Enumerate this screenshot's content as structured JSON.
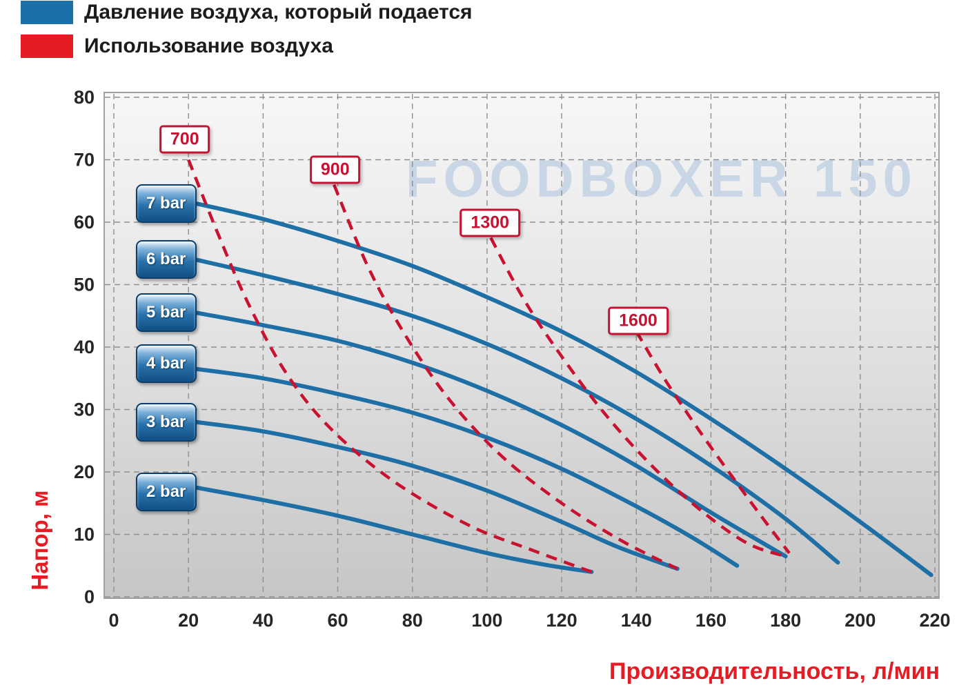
{
  "legend": {
    "items": [
      {
        "label": "Давление воздуха, который подается",
        "color": "#1c6fa8"
      },
      {
        "label": "Использование воздуха",
        "color": "#e41b23"
      }
    ]
  },
  "chart_data": {
    "type": "line",
    "title": "FOODBOXER 150",
    "xlabel": "Производительность, л/мин",
    "ylabel": "Напор, м",
    "xlim": [
      0,
      220
    ],
    "ylim": [
      0,
      80
    ],
    "xticks": [
      0,
      20,
      40,
      60,
      80,
      100,
      120,
      140,
      160,
      180,
      200,
      220
    ],
    "yticks": [
      0,
      10,
      20,
      30,
      40,
      50,
      60,
      70,
      80
    ],
    "grid": true,
    "legend_position": "top-left",
    "series": [
      {
        "name": "7 bar",
        "kind": "pressure",
        "color": "#1e6fa5",
        "style": "solid",
        "points": [
          [
            22,
            63
          ],
          [
            40,
            60.5
          ],
          [
            60,
            57
          ],
          [
            80,
            53
          ],
          [
            100,
            48
          ],
          [
            120,
            42.5
          ],
          [
            140,
            36
          ],
          [
            160,
            28.5
          ],
          [
            180,
            20.5
          ],
          [
            200,
            12
          ],
          [
            219,
            3.5
          ]
        ]
      },
      {
        "name": "6 bar",
        "kind": "pressure",
        "color": "#1e6fa5",
        "style": "solid",
        "points": [
          [
            22,
            54
          ],
          [
            40,
            51.5
          ],
          [
            60,
            48.5
          ],
          [
            80,
            45
          ],
          [
            100,
            40.5
          ],
          [
            120,
            35
          ],
          [
            140,
            28.5
          ],
          [
            160,
            21
          ],
          [
            180,
            12.5
          ],
          [
            194,
            5.5
          ]
        ]
      },
      {
        "name": "5 bar",
        "kind": "pressure",
        "color": "#1e6fa5",
        "style": "solid",
        "points": [
          [
            22,
            45.5
          ],
          [
            40,
            43.5
          ],
          [
            60,
            41
          ],
          [
            80,
            37.5
          ],
          [
            100,
            33
          ],
          [
            120,
            27.5
          ],
          [
            140,
            21
          ],
          [
            160,
            13.5
          ],
          [
            180,
            6.5
          ]
        ]
      },
      {
        "name": "4 bar",
        "kind": "pressure",
        "color": "#1e6fa5",
        "style": "solid",
        "points": [
          [
            22,
            36.5
          ],
          [
            40,
            35
          ],
          [
            60,
            32.5
          ],
          [
            80,
            29.5
          ],
          [
            100,
            25.5
          ],
          [
            120,
            20.5
          ],
          [
            140,
            14.5
          ],
          [
            155,
            9.5
          ],
          [
            167,
            5
          ]
        ]
      },
      {
        "name": "3 bar",
        "kind": "pressure",
        "color": "#1e6fa5",
        "style": "solid",
        "points": [
          [
            22,
            28
          ],
          [
            40,
            26.5
          ],
          [
            60,
            24
          ],
          [
            80,
            21
          ],
          [
            100,
            17
          ],
          [
            120,
            12
          ],
          [
            135,
            8
          ],
          [
            151,
            4.5
          ]
        ]
      },
      {
        "name": "2 bar",
        "kind": "pressure",
        "color": "#1e6fa5",
        "style": "solid",
        "points": [
          [
            22,
            17.5
          ],
          [
            40,
            15.5
          ],
          [
            60,
            13
          ],
          [
            80,
            10
          ],
          [
            100,
            7
          ],
          [
            115,
            5.2
          ],
          [
            128,
            4
          ]
        ]
      },
      {
        "name": "700",
        "kind": "air",
        "color": "#c8122f",
        "style": "dashed",
        "points": [
          [
            20,
            70
          ],
          [
            28,
            58
          ],
          [
            36,
            47
          ],
          [
            46,
            36
          ],
          [
            58,
            27
          ],
          [
            75,
            18.5
          ],
          [
            95,
            11.5
          ],
          [
            112,
            7.5
          ],
          [
            128,
            4
          ]
        ]
      },
      {
        "name": "900",
        "kind": "air",
        "color": "#c8122f",
        "style": "dashed",
        "points": [
          [
            59,
            66
          ],
          [
            68,
            53
          ],
          [
            78,
            42
          ],
          [
            90,
            31.5
          ],
          [
            104,
            22.5
          ],
          [
            120,
            15
          ],
          [
            136,
            9
          ],
          [
            151,
            4.5
          ]
        ]
      },
      {
        "name": "1300",
        "kind": "air",
        "color": "#c8122f",
        "style": "dashed",
        "points": [
          [
            101,
            57.5
          ],
          [
            110,
            47.5
          ],
          [
            120,
            38.5
          ],
          [
            132,
            29
          ],
          [
            145,
            20.5
          ],
          [
            158,
            13.5
          ],
          [
            170,
            8.5
          ],
          [
            180,
            6.5
          ]
        ]
      },
      {
        "name": "1600",
        "kind": "air",
        "color": "#c8122f",
        "style": "dashed",
        "points": [
          [
            140,
            42.5
          ],
          [
            148,
            34.5
          ],
          [
            157,
            26.5
          ],
          [
            166,
            19
          ],
          [
            174,
            12.5
          ],
          [
            181,
            7
          ]
        ]
      }
    ],
    "pressure_badges": [
      {
        "label": "7 bar",
        "x": 14,
        "y": 63
      },
      {
        "label": "6 bar",
        "x": 14,
        "y": 54
      },
      {
        "label": "5 bar",
        "x": 14,
        "y": 45.5
      },
      {
        "label": "4 bar",
        "x": 14,
        "y": 37.3
      },
      {
        "label": "3 bar",
        "x": 14,
        "y": 28
      },
      {
        "label": "2 bar",
        "x": 14,
        "y": 16.8
      }
    ],
    "air_badges": [
      {
        "label": "700",
        "x": 19,
        "y": 73.3
      },
      {
        "label": "900",
        "x": 59.3,
        "y": 68.4
      },
      {
        "label": "1300",
        "x": 100.8,
        "y": 59.9
      },
      {
        "label": "1600",
        "x": 140.5,
        "y": 44.2
      }
    ]
  }
}
